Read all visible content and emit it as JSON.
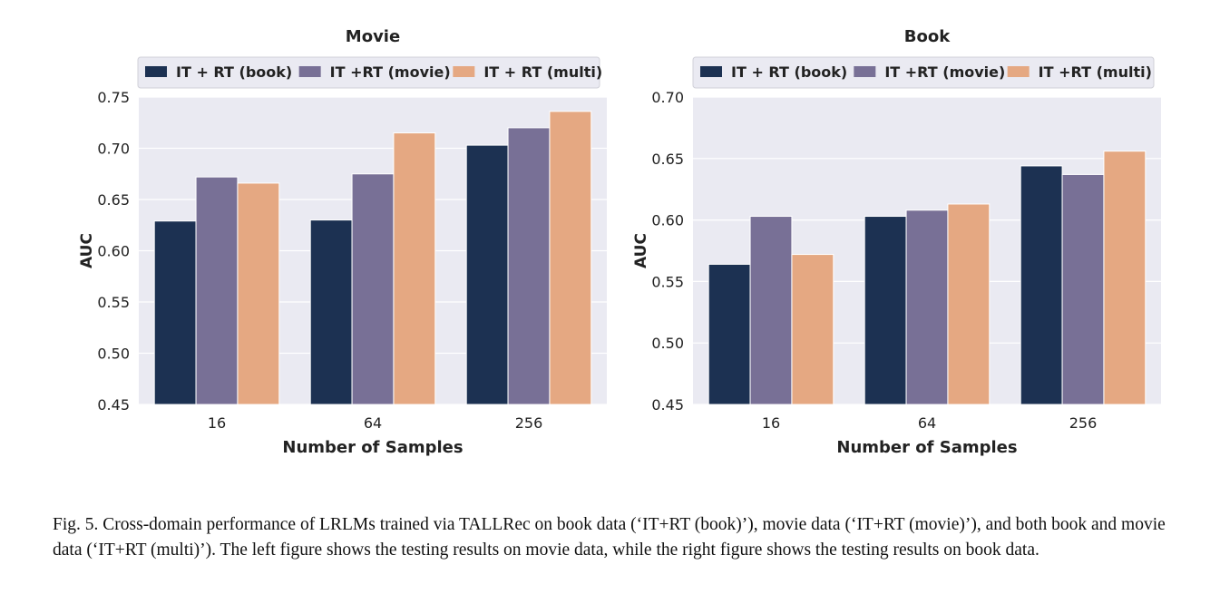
{
  "chart_data": [
    {
      "type": "bar",
      "title": "Movie",
      "xlabel": "Number of Samples",
      "ylabel": "AUC",
      "categories": [
        "16",
        "64",
        "256"
      ],
      "ylim": [
        0.45,
        0.75
      ],
      "yticks": [
        "0.45",
        "0.50",
        "0.55",
        "0.60",
        "0.65",
        "0.70",
        "0.75"
      ],
      "grid": true,
      "legend": "top",
      "series": [
        {
          "name": "IT + RT (book)",
          "color": "#1c3152",
          "values": [
            0.629,
            0.63,
            0.703
          ]
        },
        {
          "name": "IT +RT (movie)",
          "color": "#787096",
          "values": [
            0.672,
            0.675,
            0.72
          ]
        },
        {
          "name": "IT + RT (multi)",
          "color": "#e5a882",
          "values": [
            0.666,
            0.715,
            0.736
          ]
        }
      ]
    },
    {
      "type": "bar",
      "title": "Book",
      "xlabel": "Number of Samples",
      "ylabel": "AUC",
      "categories": [
        "16",
        "64",
        "256"
      ],
      "ylim": [
        0.45,
        0.7
      ],
      "yticks": [
        "0.45",
        "0.50",
        "0.55",
        "0.60",
        "0.65",
        "0.70"
      ],
      "grid": true,
      "legend": "top",
      "series": [
        {
          "name": "IT + RT (book)",
          "color": "#1c3152",
          "values": [
            0.564,
            0.603,
            0.644
          ]
        },
        {
          "name": "IT +RT (movie)",
          "color": "#787096",
          "values": [
            0.603,
            0.608,
            0.637
          ]
        },
        {
          "name": "IT +RT (multi)",
          "color": "#e5a882",
          "values": [
            0.572,
            0.613,
            0.656
          ]
        }
      ]
    }
  ],
  "caption": "Fig. 5.  Cross-domain performance of LRLMs trained via TALLRec on book data (‘IT+RT (book)’), movie data (‘IT+RT (movie)’), and both book and movie data (‘IT+RT (multi)’). The left figure shows the testing results on movie data, while the right figure shows the testing results on book data."
}
